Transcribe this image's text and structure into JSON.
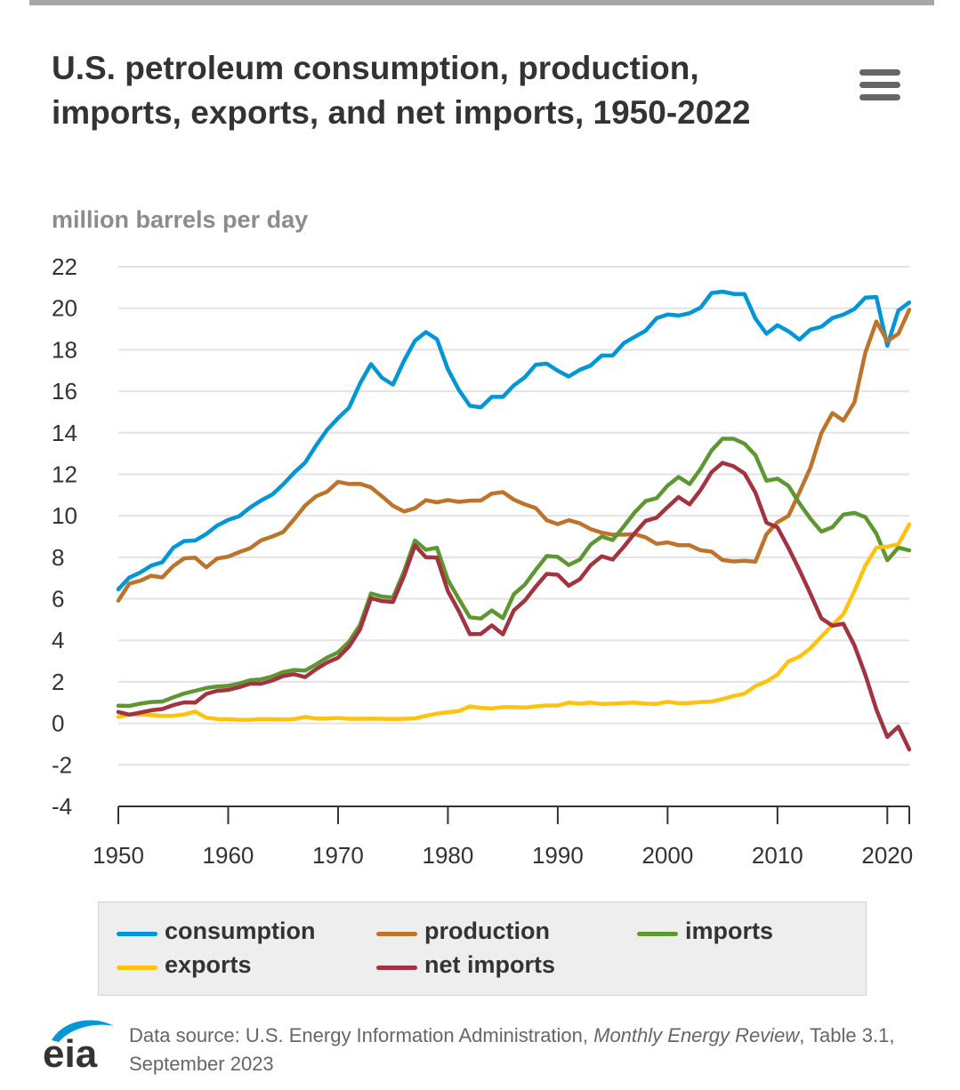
{
  "header": {
    "title": "U.S. petroleum consumption, production, imports, exports, and net imports, 1950-2022",
    "menu_icon": "hamburger-menu-icon"
  },
  "chart_data": {
    "type": "line",
    "title": "U.S. petroleum consumption, production, imports, exports, and net imports, 1950-2022",
    "ylabel": "million barrels per day",
    "xlabel": "",
    "ylim": [
      -4,
      22
    ],
    "xlim": [
      1950,
      2022
    ],
    "yticks": [
      -4,
      -2,
      0,
      2,
      4,
      6,
      8,
      10,
      12,
      14,
      16,
      18,
      20,
      22
    ],
    "xticks": [
      1950,
      1960,
      1970,
      1980,
      1990,
      2000,
      2010,
      2020
    ],
    "grid": true,
    "legend_position": "bottom",
    "x": [
      1950,
      1951,
      1952,
      1953,
      1954,
      1955,
      1956,
      1957,
      1958,
      1959,
      1960,
      1961,
      1962,
      1963,
      1964,
      1965,
      1966,
      1967,
      1968,
      1969,
      1970,
      1971,
      1972,
      1973,
      1974,
      1975,
      1976,
      1977,
      1978,
      1979,
      1980,
      1981,
      1982,
      1983,
      1984,
      1985,
      1986,
      1987,
      1988,
      1989,
      1990,
      1991,
      1992,
      1993,
      1994,
      1995,
      1996,
      1997,
      1998,
      1999,
      2000,
      2001,
      2002,
      2003,
      2004,
      2005,
      2006,
      2007,
      2008,
      2009,
      2010,
      2011,
      2012,
      2013,
      2014,
      2015,
      2016,
      2017,
      2018,
      2019,
      2020,
      2021,
      2022
    ],
    "series": [
      {
        "name": "consumption",
        "color": "#0096d7",
        "values": [
          6.46,
          7.02,
          7.27,
          7.6,
          7.76,
          8.46,
          8.78,
          8.81,
          9.12,
          9.53,
          9.8,
          9.98,
          10.4,
          10.74,
          11.02,
          11.51,
          12.08,
          12.56,
          13.39,
          14.14,
          14.7,
          15.21,
          16.37,
          17.31,
          16.65,
          16.32,
          17.46,
          18.43,
          18.85,
          18.51,
          17.06,
          16.06,
          15.3,
          15.23,
          15.73,
          15.73,
          16.28,
          16.67,
          17.28,
          17.33,
          16.99,
          16.71,
          17.03,
          17.24,
          17.72,
          17.72,
          18.31,
          18.62,
          18.92,
          19.52,
          19.7,
          19.65,
          19.76,
          20.03,
          20.73,
          20.8,
          20.69,
          20.68,
          19.5,
          18.77,
          19.18,
          18.89,
          18.49,
          18.97,
          19.11,
          19.53,
          19.69,
          19.96,
          20.51,
          20.54,
          18.19,
          19.89,
          20.28
        ]
      },
      {
        "name": "production",
        "color": "#bd732a",
        "values": [
          5.91,
          6.73,
          6.87,
          7.11,
          7.03,
          7.58,
          7.95,
          7.98,
          7.52,
          7.94,
          8.03,
          8.25,
          8.44,
          8.82,
          9.0,
          9.22,
          9.83,
          10.49,
          10.94,
          11.16,
          11.64,
          11.53,
          11.54,
          11.37,
          10.94,
          10.48,
          10.21,
          10.36,
          10.75,
          10.65,
          10.76,
          10.67,
          10.73,
          10.74,
          11.07,
          11.14,
          10.78,
          10.55,
          10.37,
          9.79,
          9.6,
          9.79,
          9.64,
          9.36,
          9.19,
          9.09,
          9.09,
          9.12,
          8.96,
          8.65,
          8.72,
          8.58,
          8.58,
          8.34,
          8.27,
          7.87,
          7.8,
          7.83,
          7.79,
          9.11,
          9.69,
          10.0,
          11.13,
          12.32,
          13.98,
          14.95,
          14.59,
          15.46,
          17.86,
          19.36,
          18.42,
          18.77,
          19.93
        ]
      },
      {
        "name": "imports",
        "color": "#5d9732",
        "values": [
          0.85,
          0.84,
          0.95,
          1.03,
          1.05,
          1.25,
          1.44,
          1.57,
          1.7,
          1.78,
          1.81,
          1.92,
          2.08,
          2.12,
          2.26,
          2.47,
          2.57,
          2.54,
          2.84,
          3.17,
          3.42,
          3.93,
          4.74,
          6.26,
          6.11,
          6.06,
          7.31,
          8.81,
          8.36,
          8.46,
          6.91,
          5.99,
          5.11,
          5.05,
          5.44,
          5.07,
          6.22,
          6.68,
          7.4,
          8.06,
          8.02,
          7.63,
          7.89,
          8.62,
          9.0,
          8.83,
          9.48,
          10.16,
          10.71,
          10.85,
          11.46,
          11.87,
          11.53,
          12.26,
          13.15,
          13.71,
          13.71,
          13.47,
          12.92,
          11.69,
          11.79,
          11.44,
          10.6,
          9.86,
          9.24,
          9.45,
          10.06,
          10.14,
          9.94,
          9.14,
          7.86,
          8.47,
          8.33
        ]
      },
      {
        "name": "exports",
        "color": "#ffc20e",
        "values": [
          0.31,
          0.42,
          0.43,
          0.4,
          0.36,
          0.37,
          0.43,
          0.57,
          0.28,
          0.21,
          0.2,
          0.17,
          0.17,
          0.21,
          0.2,
          0.19,
          0.2,
          0.31,
          0.23,
          0.23,
          0.26,
          0.22,
          0.22,
          0.23,
          0.22,
          0.21,
          0.22,
          0.24,
          0.36,
          0.47,
          0.54,
          0.59,
          0.82,
          0.74,
          0.72,
          0.78,
          0.78,
          0.76,
          0.82,
          0.86,
          0.86,
          1.0,
          0.95,
          1.0,
          0.94,
          0.95,
          0.98,
          1.0,
          0.95,
          0.94,
          1.04,
          0.97,
          0.98,
          1.03,
          1.05,
          1.17,
          1.32,
          1.43,
          1.8,
          2.02,
          2.35,
          2.99,
          3.21,
          3.62,
          4.18,
          4.74,
          5.26,
          6.38,
          7.6,
          8.47,
          8.51,
          8.63,
          9.59
        ]
      },
      {
        "name": "net imports",
        "color": "#a33340",
        "values": [
          0.55,
          0.42,
          0.52,
          0.63,
          0.69,
          0.88,
          1.01,
          1.0,
          1.42,
          1.57,
          1.61,
          1.74,
          1.91,
          1.91,
          2.06,
          2.28,
          2.37,
          2.23,
          2.61,
          2.93,
          3.16,
          3.7,
          4.52,
          6.03,
          5.89,
          5.85,
          7.09,
          8.57,
          8.0,
          7.99,
          6.37,
          5.4,
          4.3,
          4.31,
          4.72,
          4.29,
          5.44,
          5.91,
          6.59,
          7.2,
          7.16,
          6.63,
          6.94,
          7.62,
          8.05,
          7.89,
          8.5,
          9.16,
          9.76,
          9.91,
          10.42,
          10.9,
          10.55,
          11.24,
          12.1,
          12.55,
          12.39,
          12.04,
          11.11,
          9.67,
          9.44,
          8.45,
          7.39,
          6.24,
          5.06,
          4.71,
          4.8,
          3.76,
          2.34,
          0.67,
          -0.65,
          -0.16,
          -1.26
        ]
      }
    ]
  },
  "legend": {
    "items": [
      {
        "label": "consumption",
        "color": "#0096d7"
      },
      {
        "label": "production",
        "color": "#bd732a"
      },
      {
        "label": "imports",
        "color": "#5d9732"
      },
      {
        "label": "exports",
        "color": "#ffc20e"
      },
      {
        "label": "net imports",
        "color": "#a33340"
      }
    ]
  },
  "footer": {
    "logo_text": "eia",
    "logo_icon": "eia-logo-icon",
    "source_prefix": "Data source: U.S. Energy Information Administration, ",
    "source_italic": "Monthly Energy Review",
    "source_suffix": ", Table 3.1, September 2023"
  }
}
